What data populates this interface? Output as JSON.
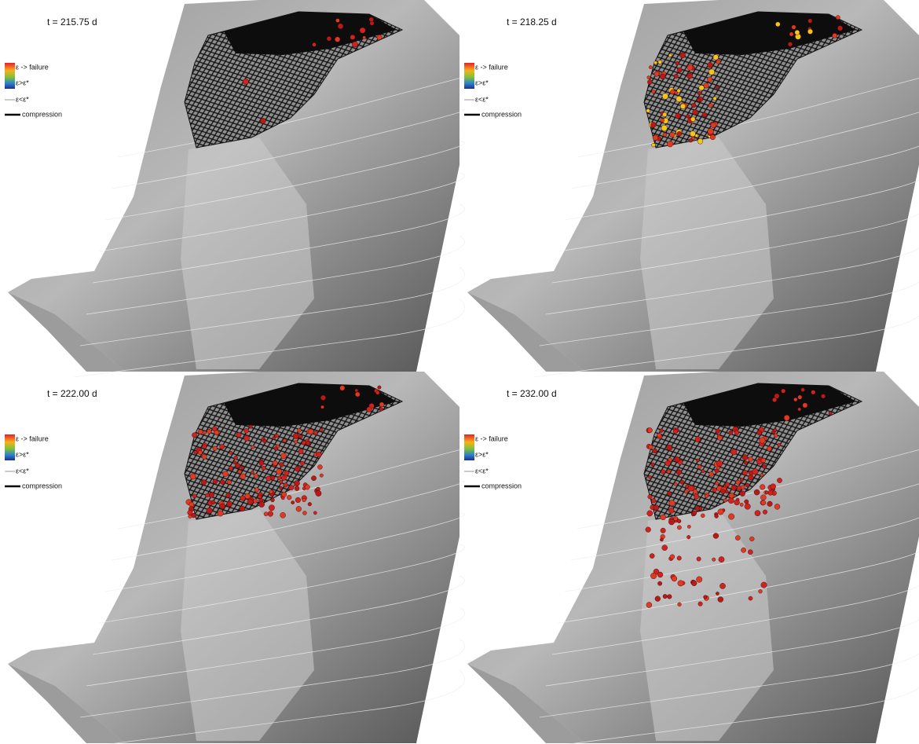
{
  "panels": [
    {
      "time": "t = 215.75 d",
      "legend": [
        "ε -> failure",
        "ε>ε*",
        "ε<ε*",
        "compression"
      ]
    },
    {
      "time": "t = 218.25 d",
      "legend": [
        "ε -> failure",
        "ε>ε*",
        "ε<ε*",
        "compression"
      ]
    },
    {
      "time": "t = 222.00 d",
      "legend": [
        "ε -> failure",
        "ε>ε*",
        "ε<ε*",
        "compression"
      ]
    },
    {
      "time": "t = 232.00 d",
      "legend": [
        "ε -> failure",
        "ε>ε*",
        "ε<ε*",
        "compression"
      ]
    }
  ]
}
